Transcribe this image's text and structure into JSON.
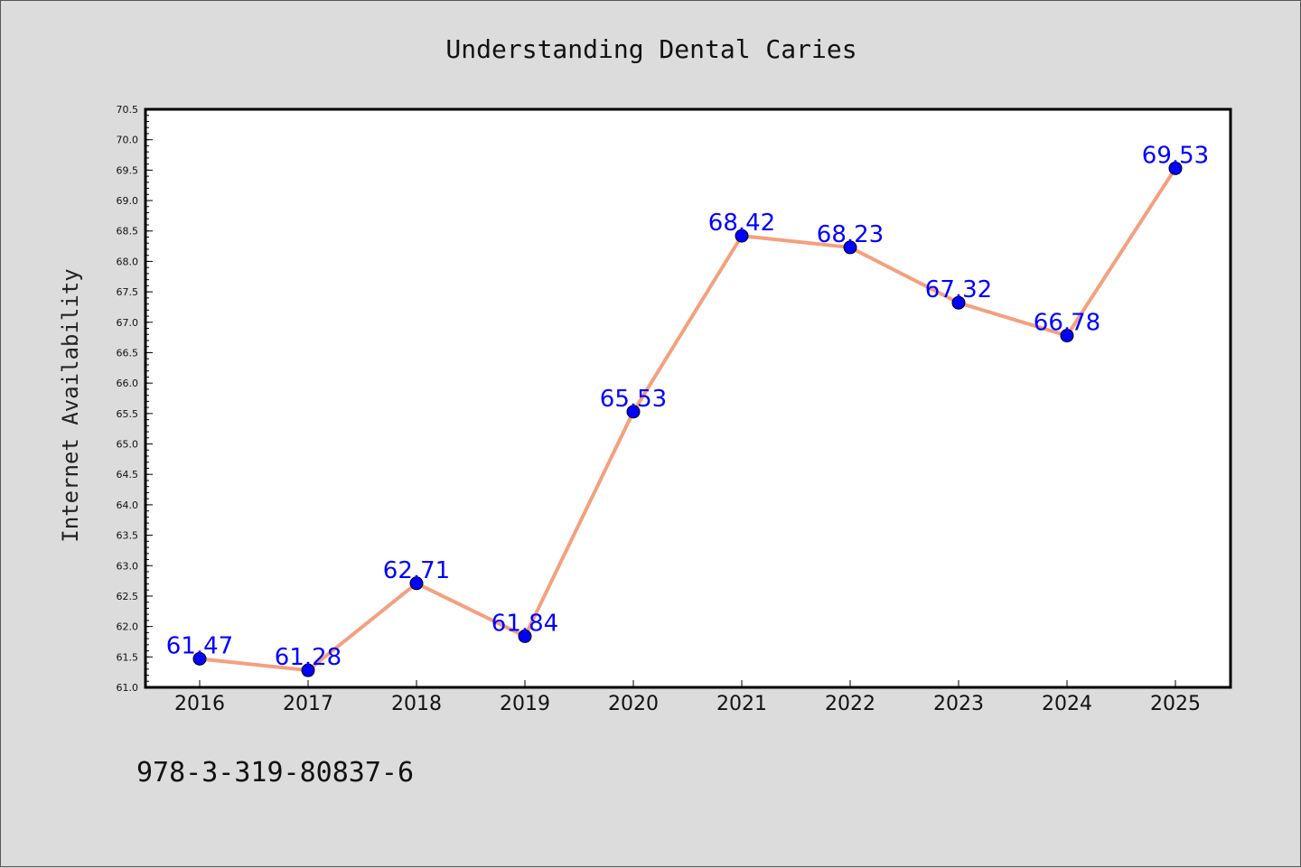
{
  "chart_data": {
    "type": "line",
    "title": "Understanding Dental Caries",
    "xlabel": "",
    "ylabel": "Internet Availability",
    "categories": [
      "2016",
      "2017",
      "2018",
      "2019",
      "2020",
      "2021",
      "2022",
      "2023",
      "2024",
      "2025"
    ],
    "series": [
      {
        "values": [
          61.47,
          61.28,
          62.71,
          61.84,
          65.53,
          68.42,
          68.23,
          67.32,
          66.78,
          69.53
        ],
        "labels": [
          "61.47",
          "61.28",
          "62.71",
          "61.84",
          "65.53",
          "68.42",
          "68.23",
          "67.32",
          "66.78",
          "69.53"
        ]
      }
    ],
    "ylim": [
      61.0,
      70.5
    ],
    "yticks": [
      "61.0",
      "61.5",
      "62.0",
      "62.5",
      "63.0",
      "63.5",
      "64.0",
      "64.5",
      "65.0",
      "65.5",
      "66.0",
      "66.5",
      "67.0",
      "67.5",
      "68.0",
      "68.5",
      "69.0",
      "69.5",
      "70.0",
      "70.5"
    ],
    "grid": false,
    "legend": "none",
    "colors": {
      "line": "#f4a07f",
      "marker": "#0000ff",
      "label": "#0000ff",
      "background": "#dcdcdc",
      "plot_bg": "#ffffff"
    }
  },
  "footer": {
    "text": "978-3-319-80837-6"
  }
}
